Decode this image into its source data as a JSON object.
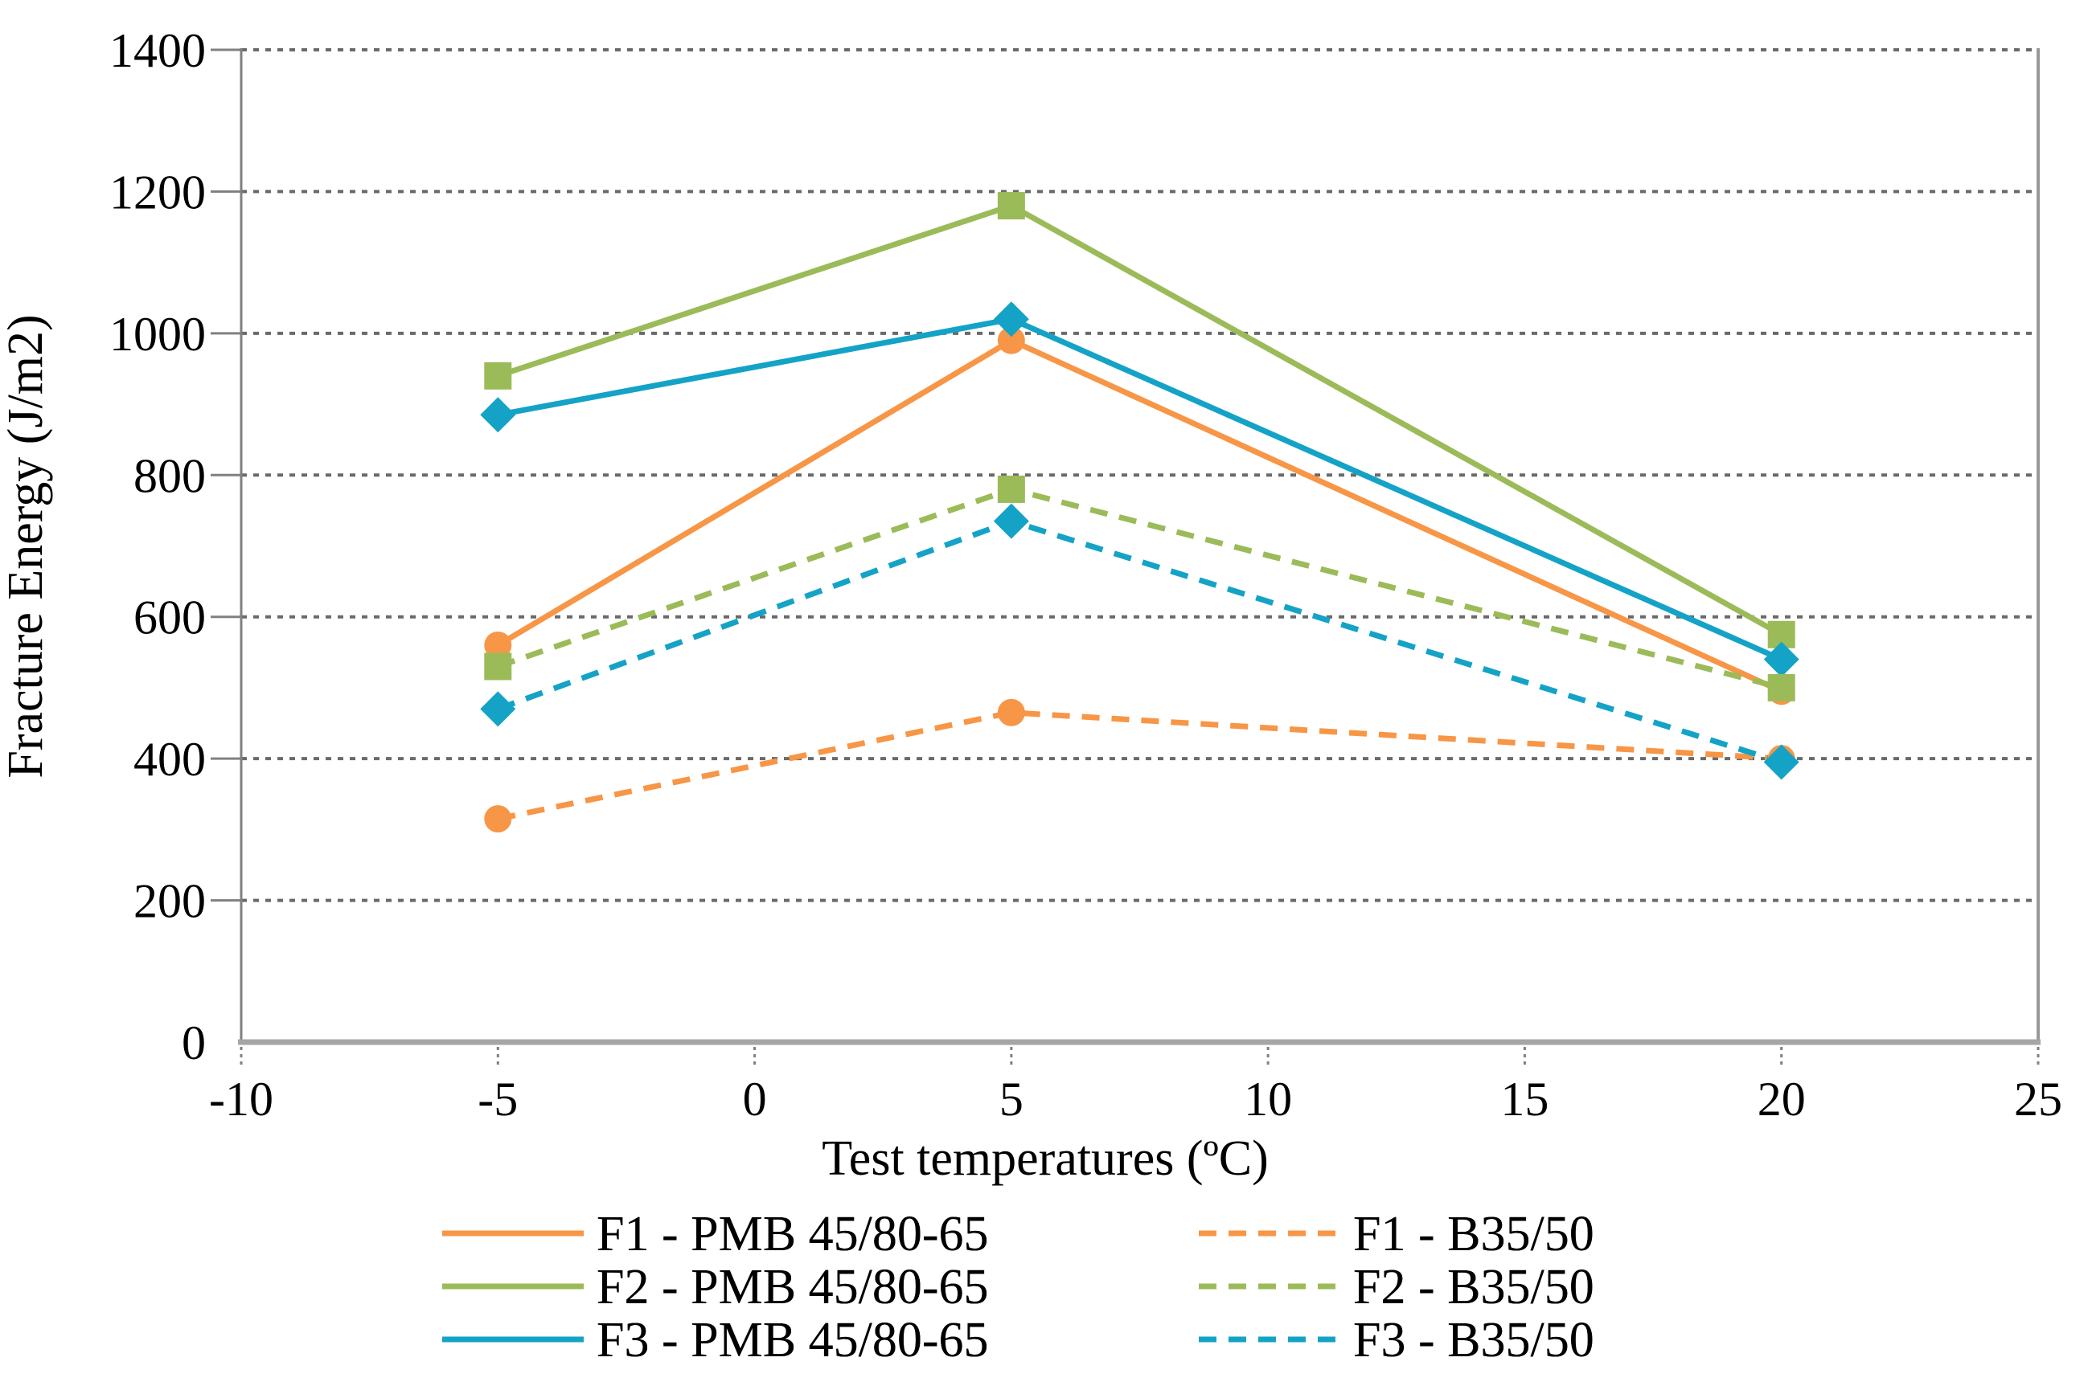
{
  "chart_data": {
    "type": "line",
    "title": "",
    "xlabel": "Test temperatures (ºC)",
    "ylabel": "Fracture Energy (J/m2)",
    "x": [
      -5,
      5,
      20
    ],
    "xlim": [
      -10,
      25
    ],
    "ylim": [
      0,
      1400
    ],
    "x_ticks": [
      -10,
      -5,
      0,
      5,
      10,
      15,
      20,
      25
    ],
    "y_ticks": [
      0,
      200,
      400,
      600,
      800,
      1000,
      1200,
      1400
    ],
    "grid": "horizontal-dotted",
    "legend_position": "bottom-two-columns",
    "series": [
      {
        "name": "F1 - PMB 45/80-65",
        "color": "#F79646",
        "style": "solid",
        "marker": "circle",
        "values": [
          560,
          990,
          495
        ]
      },
      {
        "name": "F2 - PMB 45/80-65",
        "color": "#9BBB59",
        "style": "solid",
        "marker": "square",
        "values": [
          940,
          1180,
          575
        ]
      },
      {
        "name": "F3 - PMB 45/80-65",
        "color": "#14A3C6",
        "style": "solid",
        "marker": "diamond",
        "values": [
          885,
          1020,
          540
        ]
      },
      {
        "name": "F1 - B35/50",
        "color": "#F79646",
        "style": "dashed",
        "marker": "circle",
        "values": [
          315,
          465,
          400
        ]
      },
      {
        "name": "F2 - B35/50",
        "color": "#9BBB59",
        "style": "dashed",
        "marker": "square",
        "values": [
          530,
          780,
          500
        ]
      },
      {
        "name": "F3 - B35/50",
        "color": "#14A3C6",
        "style": "dashed",
        "marker": "diamond",
        "values": [
          470,
          735,
          395
        ]
      }
    ],
    "style_colors": {
      "gridline": "#6A6A6A",
      "x_axis_line": "#A6A6A6",
      "y_axis_line": "#808080",
      "right_border": "#999999",
      "tick_text": "#000000"
    }
  }
}
